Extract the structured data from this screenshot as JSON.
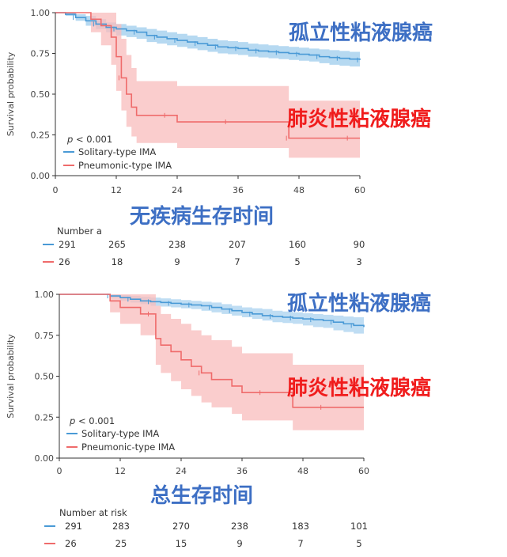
{
  "chart_data": [
    {
      "type": "line",
      "ylabel": "Survival probability",
      "xticks": [
        "0",
        "12",
        "24",
        "36",
        "48",
        "60"
      ],
      "yticks": [
        "0.00",
        "0.25",
        "0.50",
        "0.75",
        "1.00"
      ],
      "xlim": [
        0,
        60
      ],
      "ylim": [
        0,
        1
      ],
      "pvalue": "p < 0.001",
      "caption": "无疾病生存时间",
      "risk_title": "Number a",
      "series": [
        {
          "name": "Solitary-type IMA",
          "label_cn": "孤立性粘液腺癌",
          "color": "#4a9ad6",
          "band_color": "#a9d2ef",
          "x": [
            0,
            2,
            4,
            6,
            8,
            10,
            12,
            14,
            16,
            18,
            20,
            22,
            24,
            26,
            28,
            30,
            32,
            34,
            36,
            38,
            40,
            42,
            44,
            46,
            48,
            50,
            52,
            54,
            56,
            58,
            60
          ],
          "y": [
            1.0,
            0.99,
            0.97,
            0.95,
            0.93,
            0.91,
            0.9,
            0.89,
            0.88,
            0.86,
            0.85,
            0.84,
            0.83,
            0.82,
            0.81,
            0.8,
            0.79,
            0.785,
            0.78,
            0.77,
            0.765,
            0.76,
            0.755,
            0.75,
            0.745,
            0.74,
            0.73,
            0.725,
            0.72,
            0.715,
            0.71
          ],
          "lower": [
            1.0,
            0.98,
            0.95,
            0.92,
            0.9,
            0.88,
            0.86,
            0.85,
            0.84,
            0.82,
            0.81,
            0.8,
            0.79,
            0.78,
            0.77,
            0.76,
            0.75,
            0.745,
            0.74,
            0.73,
            0.725,
            0.72,
            0.715,
            0.71,
            0.705,
            0.7,
            0.69,
            0.68,
            0.675,
            0.67,
            0.66
          ],
          "upper": [
            1.0,
            1.0,
            0.99,
            0.98,
            0.96,
            0.94,
            0.93,
            0.92,
            0.91,
            0.9,
            0.89,
            0.88,
            0.87,
            0.86,
            0.85,
            0.84,
            0.83,
            0.825,
            0.82,
            0.81,
            0.805,
            0.8,
            0.795,
            0.79,
            0.785,
            0.78,
            0.775,
            0.77,
            0.765,
            0.76,
            0.755
          ],
          "risk": [
            "291",
            "265",
            "238",
            "207",
            "160",
            "90"
          ]
        },
        {
          "name": "Pneumonic-type IMA",
          "label_cn": "肺炎性粘液腺癌",
          "color": "#ef6b6b",
          "band_color": "#f8bcbc",
          "x": [
            0,
            6,
            7,
            9,
            11,
            12,
            13,
            14,
            15,
            16,
            18,
            20,
            22,
            24,
            26,
            28,
            30,
            32,
            34,
            36,
            38,
            40,
            42,
            45,
            46,
            48,
            50,
            52,
            54,
            56,
            58,
            60
          ],
          "y": [
            1.0,
            1.0,
            0.96,
            0.92,
            0.85,
            0.73,
            0.6,
            0.5,
            0.42,
            0.37,
            0.37,
            0.37,
            0.37,
            0.33,
            0.33,
            0.33,
            0.33,
            0.33,
            0.33,
            0.33,
            0.33,
            0.33,
            0.33,
            0.33,
            0.23,
            0.23,
            0.23,
            0.23,
            0.23,
            0.23,
            0.23,
            0.23
          ],
          "lower": [
            1.0,
            1.0,
            0.88,
            0.8,
            0.68,
            0.52,
            0.4,
            0.3,
            0.24,
            0.2,
            0.2,
            0.2,
            0.2,
            0.17,
            0.17,
            0.17,
            0.17,
            0.17,
            0.17,
            0.17,
            0.17,
            0.17,
            0.17,
            0.17,
            0.11,
            0.11,
            0.11,
            0.11,
            0.11,
            0.11,
            0.11,
            0.11
          ],
          "upper": [
            1.0,
            1.0,
            1.0,
            1.0,
            1.0,
            0.93,
            0.84,
            0.74,
            0.66,
            0.58,
            0.58,
            0.58,
            0.58,
            0.55,
            0.55,
            0.55,
            0.55,
            0.55,
            0.55,
            0.55,
            0.55,
            0.55,
            0.55,
            0.55,
            0.46,
            0.46,
            0.46,
            0.46,
            0.46,
            0.46,
            0.46,
            0.46
          ],
          "risk": [
            "26",
            "18",
            "9",
            "7",
            "5",
            "3"
          ]
        }
      ]
    },
    {
      "type": "line",
      "ylabel": "Survival probability",
      "xticks": [
        "0",
        "12",
        "24",
        "36",
        "48",
        "60"
      ],
      "yticks": [
        "0.00",
        "0.25",
        "0.50",
        "0.75",
        "1.00"
      ],
      "xlim": [
        0,
        60
      ],
      "ylim": [
        0,
        1
      ],
      "pvalue": "p < 0.001",
      "caption": "总生存时间",
      "risk_title": "Number at risk",
      "series": [
        {
          "name": "Solitary-type IMA",
          "label_cn": "孤立性粘液腺癌",
          "color": "#4a9ad6",
          "band_color": "#a9d2ef",
          "x": [
            0,
            8,
            10,
            12,
            14,
            16,
            18,
            20,
            22,
            24,
            26,
            28,
            30,
            32,
            34,
            36,
            38,
            40,
            42,
            44,
            46,
            48,
            50,
            52,
            54,
            56,
            58,
            60
          ],
          "y": [
            1.0,
            1.0,
            0.99,
            0.98,
            0.97,
            0.96,
            0.955,
            0.95,
            0.945,
            0.94,
            0.935,
            0.93,
            0.92,
            0.91,
            0.9,
            0.89,
            0.88,
            0.87,
            0.865,
            0.86,
            0.855,
            0.85,
            0.845,
            0.84,
            0.83,
            0.82,
            0.81,
            0.8
          ],
          "lower": [
            1.0,
            1.0,
            0.975,
            0.96,
            0.95,
            0.94,
            0.93,
            0.925,
            0.92,
            0.915,
            0.91,
            0.9,
            0.89,
            0.88,
            0.87,
            0.86,
            0.85,
            0.84,
            0.83,
            0.825,
            0.82,
            0.81,
            0.8,
            0.795,
            0.78,
            0.77,
            0.76,
            0.75
          ],
          "upper": [
            1.0,
            1.0,
            1.0,
            0.995,
            0.99,
            0.985,
            0.98,
            0.975,
            0.97,
            0.965,
            0.96,
            0.955,
            0.95,
            0.94,
            0.93,
            0.92,
            0.915,
            0.91,
            0.9,
            0.895,
            0.89,
            0.885,
            0.88,
            0.875,
            0.87,
            0.865,
            0.86,
            0.855
          ],
          "risk": [
            "291",
            "283",
            "270",
            "238",
            "183",
            "101"
          ]
        },
        {
          "name": "Pneumonic-type IMA",
          "label_cn": "肺炎性粘液腺癌",
          "color": "#ef6b6b",
          "band_color": "#f8bcbc",
          "x": [
            0,
            9,
            10,
            12,
            14,
            16,
            18,
            19,
            20,
            22,
            24,
            26,
            28,
            30,
            32,
            34,
            36,
            38,
            40,
            42,
            44,
            46,
            48,
            50,
            52,
            54,
            56,
            58,
            60
          ],
          "y": [
            1.0,
            1.0,
            0.96,
            0.92,
            0.92,
            0.88,
            0.88,
            0.73,
            0.69,
            0.65,
            0.6,
            0.56,
            0.52,
            0.48,
            0.48,
            0.44,
            0.4,
            0.4,
            0.4,
            0.4,
            0.4,
            0.31,
            0.31,
            0.31,
            0.31,
            0.31,
            0.31,
            0.31,
            0.31
          ],
          "lower": [
            1.0,
            1.0,
            0.89,
            0.82,
            0.82,
            0.75,
            0.75,
            0.57,
            0.52,
            0.47,
            0.42,
            0.38,
            0.34,
            0.31,
            0.31,
            0.27,
            0.23,
            0.23,
            0.23,
            0.23,
            0.23,
            0.17,
            0.17,
            0.17,
            0.17,
            0.17,
            0.17,
            0.17,
            0.17
          ],
          "upper": [
            1.0,
            1.0,
            1.0,
            1.0,
            1.0,
            1.0,
            1.0,
            0.93,
            0.88,
            0.85,
            0.82,
            0.78,
            0.75,
            0.72,
            0.72,
            0.68,
            0.64,
            0.64,
            0.64,
            0.64,
            0.64,
            0.57,
            0.57,
            0.57,
            0.57,
            0.57,
            0.57,
            0.57,
            0.57
          ],
          "risk": [
            "26",
            "25",
            "15",
            "9",
            "7",
            "5"
          ]
        }
      ]
    }
  ]
}
